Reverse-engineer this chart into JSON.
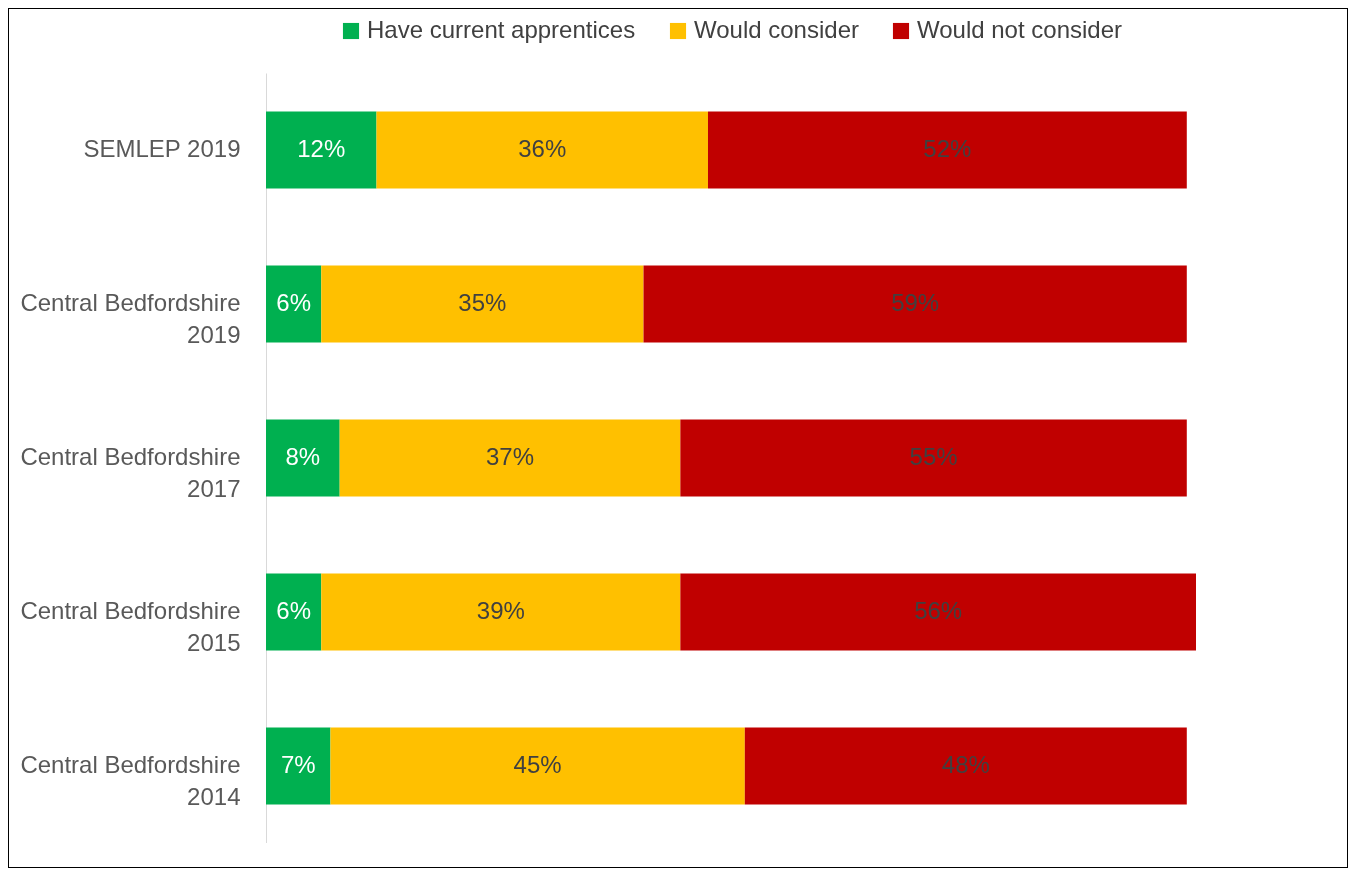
{
  "chart_data": {
    "type": "bar",
    "orientation": "horizontal",
    "stacked": true,
    "legend": "top",
    "grid": false,
    "categories": [
      "SEMLEP 2019",
      "Central Bedfordshire 2019",
      "Central Bedfordshire 2017",
      "Central Bedfordshire 2015",
      "Central Bedfordshire 2014"
    ],
    "series": [
      {
        "name": "Have current apprentices",
        "color": "#00b050",
        "values": [
          12,
          6,
          8,
          6,
          7
        ],
        "value_labels": [
          "12%",
          "6%",
          "8%",
          "6%",
          "7%"
        ]
      },
      {
        "name": "Would consider",
        "color": "#ffc000",
        "values": [
          36,
          35,
          37,
          39,
          45
        ],
        "value_labels": [
          "36%",
          "35%",
          "37%",
          "39%",
          "45%"
        ]
      },
      {
        "name": "Would not consider",
        "color": "#c00000",
        "values": [
          52,
          59,
          55,
          56,
          48
        ],
        "value_labels": [
          "52%",
          "59%",
          "55%",
          "56%",
          "48%"
        ]
      }
    ]
  }
}
